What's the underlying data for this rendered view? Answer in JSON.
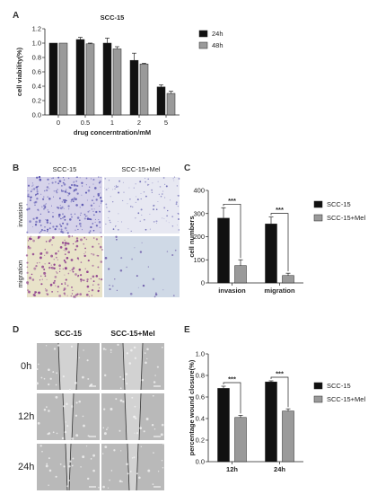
{
  "panel_letters": {
    "A": "A",
    "B": "B",
    "C": "C",
    "D": "D",
    "E": "E"
  },
  "colors": {
    "black": "#111111",
    "gray": "#9a9a9a",
    "invasion_stain": "#5a55b0",
    "migration_stain": "#8c3c8c",
    "mel_bg": "#cfd9e6"
  },
  "panelB": {
    "col1": "SCC-15",
    "col2": "SCC-15+Mel",
    "row1": "invasion",
    "row2": "migration"
  },
  "panelD": {
    "col1": "SCC-15",
    "col2": "SCC-15+Mel",
    "rows": [
      "0h",
      "12h",
      "24h"
    ]
  },
  "chart_data": [
    {
      "id": "A",
      "type": "bar",
      "title": "SCC-15",
      "xlabel": "drug concerntration/mM",
      "ylabel": "cell viability(%)",
      "categories": [
        "0",
        "0.5",
        "1",
        "2",
        "5"
      ],
      "ylim": [
        0,
        1.2
      ],
      "yticks": [
        "0.0",
        "0.2",
        "0.4",
        "0.6",
        "0.8",
        "1.0",
        "1.2"
      ],
      "legend_position": "right",
      "series": [
        {
          "name": "24h",
          "color": "#111111",
          "values": [
            1.0,
            1.05,
            1.0,
            0.76,
            0.39
          ],
          "errors": [
            0.0,
            0.03,
            0.07,
            0.1,
            0.03
          ]
        },
        {
          "name": "48h",
          "color": "#9a9a9a",
          "values": [
            1.0,
            0.99,
            0.92,
            0.71,
            0.3
          ],
          "errors": [
            0.0,
            0.01,
            0.03,
            0.01,
            0.03
          ]
        }
      ]
    },
    {
      "id": "C",
      "type": "bar",
      "title": "",
      "xlabel": "",
      "ylabel": "cell numbers",
      "categories": [
        "invasion",
        "migration"
      ],
      "ylim": [
        0,
        400
      ],
      "yticks": [
        "0",
        "100",
        "200",
        "300",
        "400"
      ],
      "significance": [
        "***",
        "***"
      ],
      "legend_position": "right",
      "series": [
        {
          "name": "SCC-15",
          "color": "#111111",
          "values": [
            280,
            255
          ],
          "errors": [
            45,
            30
          ]
        },
        {
          "name": "SCC-15+Mel",
          "color": "#9a9a9a",
          "values": [
            75,
            32
          ],
          "errors": [
            25,
            10
          ]
        }
      ]
    },
    {
      "id": "E",
      "type": "bar",
      "title": "",
      "xlabel": "",
      "ylabel": "percentage wound closure(%)",
      "categories": [
        "12h",
        "24h"
      ],
      "ylim": [
        0,
        1.0
      ],
      "yticks": [
        "0.0",
        "0.2",
        "0.4",
        "0.6",
        "0.8",
        "1.0"
      ],
      "significance": [
        "***",
        "***"
      ],
      "legend_position": "right",
      "series": [
        {
          "name": "SCC-15",
          "color": "#111111",
          "values": [
            0.68,
            0.74
          ],
          "errors": [
            0.02,
            0.01
          ]
        },
        {
          "name": "SCC-15+Mel",
          "color": "#9a9a9a",
          "values": [
            0.41,
            0.47
          ],
          "errors": [
            0.02,
            0.02
          ]
        }
      ]
    }
  ]
}
